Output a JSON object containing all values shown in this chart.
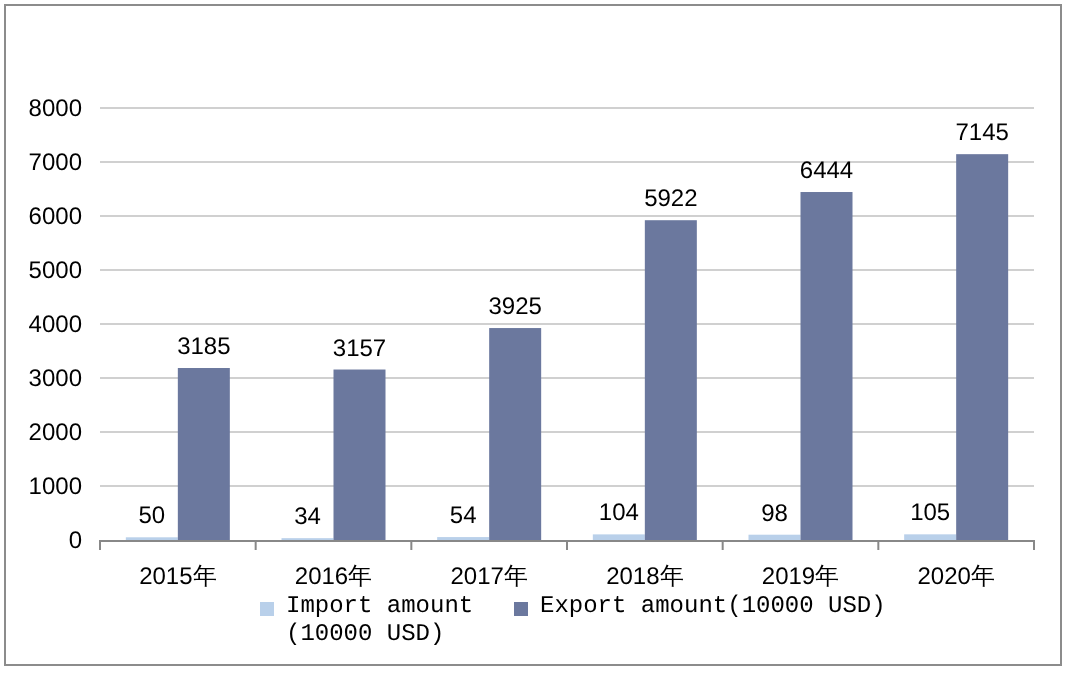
{
  "chart_data": {
    "type": "bar",
    "categories": [
      "2015年",
      "2016年",
      "2017年",
      "2018年",
      "2019年",
      "2020年"
    ],
    "series": [
      {
        "name": "Import amount (10000 USD)",
        "color": "#b9d0ea",
        "values": [
          50,
          34,
          54,
          104,
          98,
          105
        ]
      },
      {
        "name": "Export amount(10000 USD)",
        "color": "#6b789e",
        "values": [
          3185,
          3157,
          3925,
          5922,
          6444,
          7145
        ]
      }
    ],
    "ylim": [
      0,
      8000
    ],
    "yticks": [
      0,
      1000,
      2000,
      3000,
      4000,
      5000,
      6000,
      7000,
      8000
    ],
    "grid": "y",
    "legend": "bottom",
    "data_labels": true
  }
}
